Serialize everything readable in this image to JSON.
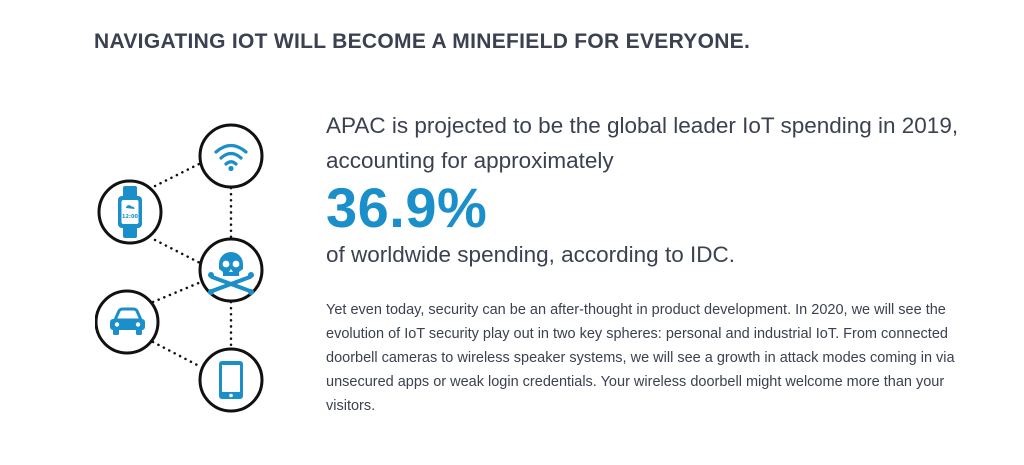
{
  "headline": "NAVIGATING IOT WILL BECOME A MINEFIELD FOR EVERYONE.",
  "lead_text": "APAC is projected to be the global leader IoT spending in 2019, accounting for approximately",
  "stat_value": "36.9%",
  "lead_tail": "of worldwide spending, according to IDC.",
  "body_text": "Yet even today, security can be an after-thought in product development. In 2020, we will see the evolution of IoT security play out in two key spheres: personal and industrial IoT. From connected doorbell cameras to wireless speaker systems, we will see a growth in attack modes coming in via unsecured apps or weak login credentials. Your wireless doorbell might welcome more than your visitors.",
  "watch_time": "12:00",
  "colors": {
    "accent": "#1a8fc9",
    "text": "#3b4150",
    "node_stroke": "#111111"
  },
  "diagram_icons": [
    "wifi-icon",
    "smartwatch-icon",
    "skull-crossbones-icon",
    "car-icon",
    "smartphone-icon"
  ]
}
